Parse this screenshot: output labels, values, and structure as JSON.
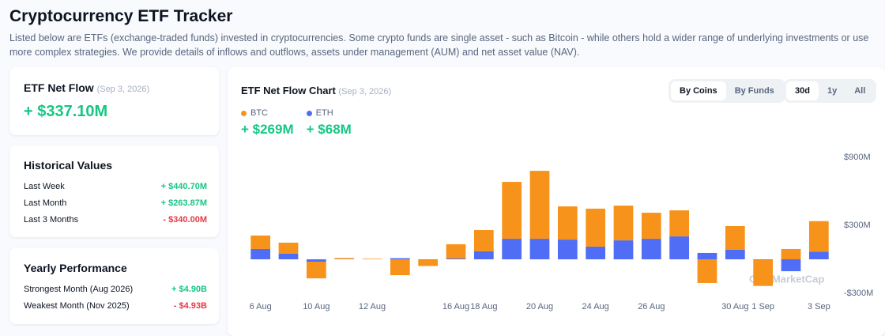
{
  "header": {
    "title": "Cryptocurrency ETF Tracker",
    "description": "Listed below are ETFs (exchange-traded funds) invested in cryptocurrencies. Some crypto funds are single asset - such as Bitcoin - while others hold a wider range of underlying investments or use more complex strategies. We provide details of inflows and outflows, assets under management (AUM) and net asset value (NAV)."
  },
  "net_flow": {
    "label": "ETF Net Flow",
    "date": "(Sep 3, 2026)",
    "value": "+ $337.10M"
  },
  "historical": {
    "title": "Historical Values",
    "rows": [
      {
        "label": "Last Week",
        "value": "+ $440.70M"
      },
      {
        "label": "Last Month",
        "value": "+ $263.87M"
      },
      {
        "label": "Last 3 Months",
        "value": "- $340.00M"
      }
    ]
  },
  "yearly": {
    "title": "Yearly Performance",
    "rows": [
      {
        "label": "Strongest Month (Aug 2026)",
        "value": "+ $4.90B"
      },
      {
        "label": "Weakest Month (Nov 2025)",
        "value": "- $4.93B"
      }
    ]
  },
  "chart_panel": {
    "title": "ETF Net Flow Chart",
    "date": "(Sep 3, 2026)",
    "view_toggle": [
      "By Coins",
      "By Funds"
    ],
    "range_toggle": [
      "30d",
      "1y",
      "All"
    ],
    "totals": [
      "+ $269M",
      "+ $68M"
    ],
    "watermark": "CoinMarketCap"
  },
  "chart_data": {
    "type": "bar",
    "stacked": true,
    "categories": [
      "6 Aug",
      null,
      "10 Aug",
      null,
      "12 Aug",
      null,
      null,
      "16 Aug",
      "18 Aug",
      null,
      "20 Aug",
      null,
      "24 Aug",
      null,
      "26 Aug",
      null,
      null,
      "30 Aug",
      "1 Sep",
      null,
      "3 Sep"
    ],
    "series": [
      {
        "name": "ETH",
        "color": "#4f6df5",
        "values": [
          91,
          49,
          -21,
          2,
          0,
          10,
          -3,
          7,
          70,
          181,
          181,
          174,
          112,
          167,
          181,
          202,
          56,
          84,
          -5,
          -105,
          68
        ]
      },
      {
        "name": "BTC",
        "color": "#f7931a",
        "values": [
          119,
          98,
          -147,
          10,
          5,
          -140,
          -56,
          126,
          188,
          502,
          600,
          293,
          335,
          307,
          230,
          230,
          -209,
          209,
          -230,
          91,
          269
        ]
      }
    ],
    "ylim": [
      -300,
      900
    ],
    "yticks": [
      {
        "value": 900,
        "label": "$900M"
      },
      {
        "value": 300,
        "label": "$300M"
      },
      {
        "value": -300,
        "label": "-$300M"
      }
    ],
    "grid": false
  }
}
